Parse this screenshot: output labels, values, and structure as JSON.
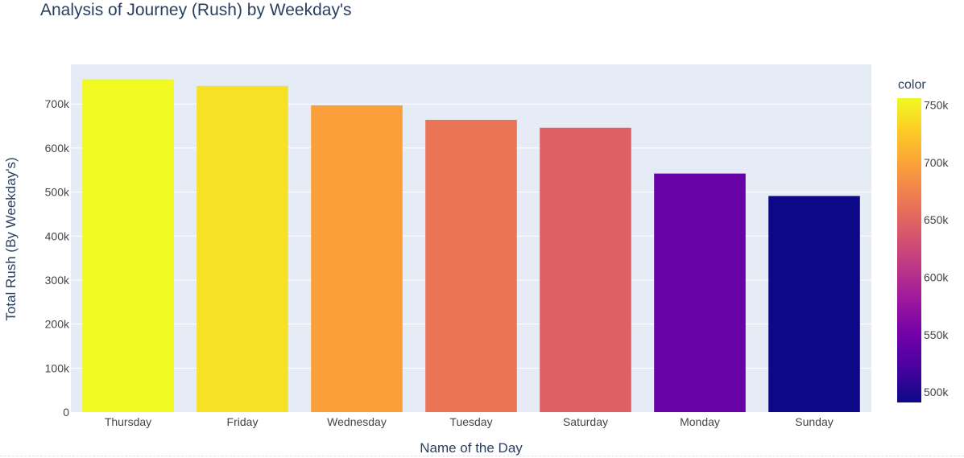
{
  "chart_data": {
    "type": "bar",
    "title": "Analysis of Journey (Rush) by Weekday's",
    "xlabel": "Name of the Day",
    "ylabel": "Total Rush (By Weekday's)",
    "categories": [
      "Thursday",
      "Friday",
      "Wednesday",
      "Tuesday",
      "Saturday",
      "Monday",
      "Sunday"
    ],
    "values": [
      756000,
      741000,
      697000,
      664000,
      646000,
      542000,
      491000
    ],
    "ylim": [
      0,
      790000
    ],
    "yticks": [
      0,
      100000,
      200000,
      300000,
      400000,
      500000,
      600000,
      700000
    ],
    "ytick_labels": [
      "0",
      "100k",
      "200k",
      "300k",
      "400k",
      "500k",
      "600k",
      "700k"
    ],
    "grid": true,
    "colorbar": {
      "title": "color",
      "range": [
        491000,
        756000
      ],
      "ticks": [
        500000,
        550000,
        600000,
        650000,
        700000,
        750000
      ],
      "tick_labels": [
        "500k",
        "550k",
        "600k",
        "650k",
        "700k",
        "750k"
      ],
      "colorscale": [
        "#0d0887",
        "#46039f",
        "#7201a8",
        "#9c179e",
        "#bd3786",
        "#d8576b",
        "#ed7953",
        "#fb9f3a",
        "#fdca26",
        "#f0f921"
      ]
    },
    "colors": {
      "plot_bg": "#e5ecf6",
      "grid": "#ffffff",
      "text": "#2a3f5f",
      "tick_text": "#444444"
    }
  }
}
